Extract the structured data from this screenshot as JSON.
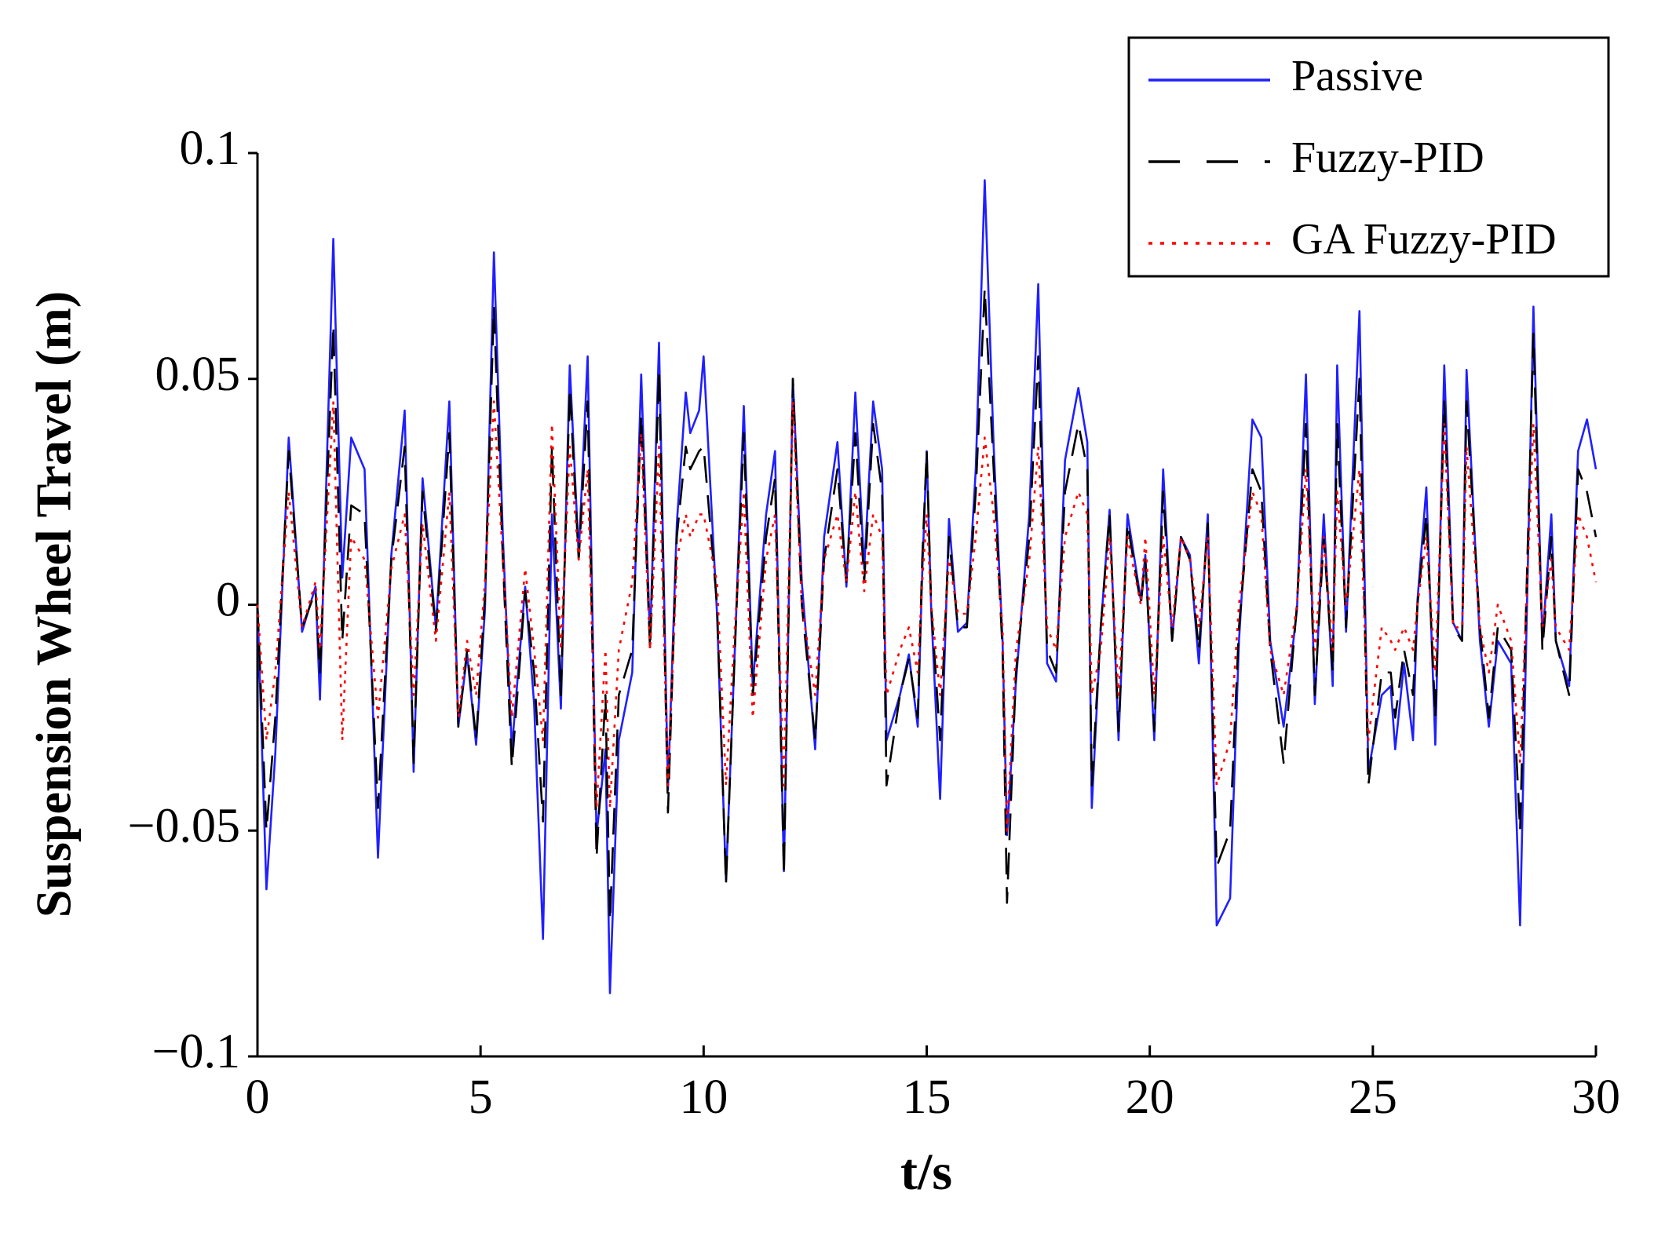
{
  "chart_data": {
    "type": "line",
    "x_label": "t/s",
    "y_label": "Suspension Wheel Travel (m)",
    "xlim": [
      0,
      30
    ],
    "xticks": [
      0,
      5,
      10,
      15,
      20,
      25,
      30
    ],
    "ylim": [
      -0.1,
      0.1
    ],
    "yticks": [
      {
        "value": -0.1,
        "label": "−0.1"
      },
      {
        "value": -0.05,
        "label": "−0.05"
      },
      0,
      0.05,
      0.1
    ],
    "legend": "upper right",
    "x": [
      0,
      0.2,
      0.4,
      0.7,
      1.0,
      1.3,
      1.4,
      1.7,
      1.9,
      2.1,
      2.4,
      2.7,
      3.0,
      3.3,
      3.5,
      3.7,
      4.0,
      4.3,
      4.5,
      4.7,
      4.9,
      5.1,
      5.3,
      5.5,
      5.7,
      6.0,
      6.2,
      6.4,
      6.6,
      6.8,
      7.0,
      7.2,
      7.4,
      7.6,
      7.8,
      7.9,
      8.1,
      8.4,
      8.6,
      8.8,
      9.0,
      9.2,
      9.4,
      9.6,
      9.7,
      9.9,
      10.0,
      10.3,
      10.5,
      10.7,
      10.9,
      11.1,
      11.4,
      11.6,
      11.8,
      12.0,
      12.2,
      12.5,
      12.7,
      13.0,
      13.2,
      13.4,
      13.6,
      13.8,
      14.0,
      14.1,
      14.4,
      14.6,
      14.8,
      14.9,
      15.0,
      15.1,
      15.3,
      15.5,
      15.7,
      15.9,
      16.1,
      16.3,
      16.5,
      16.7,
      16.8,
      17.0,
      17.3,
      17.5,
      17.7,
      17.9,
      18.1,
      18.4,
      18.6,
      18.7,
      18.9,
      19.1,
      19.3,
      19.5,
      19.8,
      19.9,
      20.1,
      20.3,
      20.5,
      20.7,
      20.9,
      21.1,
      21.3,
      21.5,
      21.8,
      22.0,
      22.3,
      22.5,
      22.7,
      23.0,
      23.3,
      23.5,
      23.7,
      23.9,
      24.1,
      24.2,
      24.4,
      24.7,
      24.9,
      25.2,
      25.4,
      25.5,
      25.7,
      25.9,
      26.0,
      26.2,
      26.4,
      26.6,
      26.8,
      27.0,
      27.1,
      27.4,
      27.6,
      27.8,
      28.1,
      28.3,
      28.6,
      28.8,
      29.0,
      29.1,
      29.4,
      29.6,
      29.8,
      30.0
    ],
    "series": [
      {
        "name": "Passive",
        "color": "#1f1fff",
        "dash": "solid",
        "values": [
          0,
          -0.063,
          -0.033,
          0.037,
          -0.006,
          0.004,
          -0.021,
          0.081,
          0.006,
          0.037,
          0.03,
          -0.056,
          0.011,
          0.043,
          -0.037,
          0.028,
          -0.005,
          0.045,
          -0.027,
          -0.011,
          -0.031,
          -0.001,
          0.078,
          0.015,
          -0.032,
          0.004,
          -0.022,
          -0.074,
          0.02,
          -0.023,
          0.053,
          0.011,
          0.055,
          -0.051,
          -0.032,
          -0.086,
          -0.03,
          -0.015,
          0.051,
          -0.008,
          0.058,
          -0.041,
          0.018,
          0.047,
          0.038,
          0.043,
          0.055,
          -0.002,
          -0.061,
          -0.01,
          0.044,
          -0.018,
          0.02,
          0.034,
          -0.059,
          0.05,
          0.005,
          -0.032,
          0.015,
          0.036,
          0.004,
          0.047,
          0.008,
          0.045,
          0.03,
          -0.03,
          -0.02,
          -0.011,
          -0.027,
          0.007,
          0.034,
          -0.001,
          -0.043,
          0.019,
          -0.006,
          -0.004,
          0.03,
          0.094,
          0.035,
          -0.008,
          -0.051,
          -0.017,
          0.02,
          0.071,
          -0.013,
          -0.017,
          0.032,
          0.048,
          0.036,
          -0.045,
          -0.005,
          0.021,
          -0.03,
          0.02,
          0.001,
          0.011,
          -0.03,
          0.03,
          -0.008,
          0.015,
          0.011,
          -0.013,
          0.02,
          -0.071,
          -0.065,
          -0.008,
          0.041,
          0.037,
          -0.008,
          -0.027,
          -0.001,
          0.051,
          -0.022,
          0.02,
          -0.018,
          0.053,
          -0.006,
          0.065,
          -0.037,
          -0.02,
          -0.018,
          -0.032,
          -0.013,
          -0.03,
          0.001,
          0.026,
          -0.031,
          0.053,
          -0.004,
          -0.008,
          0.052,
          -0.008,
          -0.027,
          -0.008,
          -0.013,
          -0.071,
          0.066,
          -0.008,
          0.02,
          -0.008,
          -0.018,
          0.034,
          0.041,
          0.03
        ]
      },
      {
        "name": "Fuzzy-PID",
        "color": "#000000",
        "dash": "dashed",
        "values": [
          0,
          -0.05,
          -0.025,
          0.034,
          -0.005,
          0.003,
          -0.015,
          0.062,
          -0.008,
          0.022,
          0.02,
          -0.045,
          0.01,
          0.035,
          -0.035,
          0.025,
          -0.006,
          0.038,
          -0.027,
          -0.01,
          -0.03,
          0.002,
          0.066,
          0.01,
          -0.036,
          0.003,
          -0.015,
          -0.048,
          0.035,
          -0.02,
          0.048,
          0.01,
          0.045,
          -0.056,
          -0.02,
          -0.07,
          -0.02,
          -0.01,
          0.042,
          -0.01,
          0.052,
          -0.046,
          0.015,
          0.035,
          0.03,
          0.034,
          0.035,
          0.0,
          -0.062,
          -0.01,
          0.038,
          -0.02,
          0.015,
          0.028,
          -0.06,
          0.05,
          0.0,
          -0.03,
          0.01,
          0.03,
          0.005,
          0.038,
          0.005,
          0.04,
          0.025,
          -0.04,
          -0.02,
          -0.012,
          -0.025,
          0.01,
          0.034,
          0.0,
          -0.03,
          0.015,
          -0.005,
          -0.005,
          0.025,
          0.07,
          0.03,
          -0.01,
          -0.066,
          -0.015,
          0.015,
          0.055,
          -0.01,
          -0.015,
          0.025,
          0.04,
          0.03,
          -0.04,
          -0.005,
          0.02,
          -0.028,
          0.018,
          0.0,
          0.01,
          -0.028,
          0.025,
          -0.008,
          0.015,
          0.01,
          -0.01,
          0.018,
          -0.058,
          -0.05,
          -0.005,
          0.03,
          0.025,
          -0.01,
          -0.035,
          0.0,
          0.04,
          -0.02,
          0.015,
          -0.015,
          0.04,
          -0.005,
          0.05,
          -0.04,
          -0.015,
          -0.015,
          -0.025,
          -0.01,
          -0.02,
          0.0,
          0.02,
          -0.025,
          0.045,
          -0.005,
          -0.008,
          0.045,
          -0.005,
          -0.025,
          -0.005,
          -0.01,
          -0.05,
          0.06,
          -0.01,
          0.015,
          -0.008,
          -0.02,
          0.03,
          0.025,
          0.015
        ]
      },
      {
        "name": "GA Fuzzy-PID",
        "color": "#ff0000",
        "dash": "dotted",
        "values": [
          0,
          -0.03,
          -0.015,
          0.025,
          -0.005,
          0.005,
          -0.01,
          0.045,
          -0.03,
          0.015,
          0.01,
          -0.025,
          0.008,
          0.02,
          -0.02,
          0.018,
          -0.008,
          0.025,
          -0.025,
          -0.008,
          -0.02,
          0.005,
          0.045,
          0.01,
          -0.025,
          0.008,
          -0.01,
          -0.03,
          0.04,
          -0.01,
          0.035,
          0.01,
          0.03,
          -0.045,
          -0.01,
          -0.045,
          -0.01,
          0.005,
          0.038,
          -0.01,
          0.035,
          -0.04,
          0.01,
          0.02,
          0.015,
          0.02,
          0.02,
          0.005,
          -0.04,
          -0.005,
          0.025,
          -0.025,
          0.01,
          0.02,
          -0.04,
          0.045,
          0.0,
          -0.02,
          0.01,
          0.02,
          0.005,
          0.025,
          0.003,
          0.02,
          0.015,
          -0.02,
          -0.01,
          -0.005,
          -0.015,
          0.005,
          0.02,
          0.0,
          -0.02,
          0.01,
          -0.002,
          -0.002,
          0.015,
          0.037,
          0.02,
          -0.005,
          -0.05,
          -0.01,
          0.01,
          0.035,
          -0.005,
          -0.01,
          0.015,
          0.025,
          0.02,
          -0.02,
          -0.01,
          0.015,
          -0.02,
          0.015,
          0.0,
          0.015,
          -0.02,
          0.015,
          -0.005,
          0.015,
          0.01,
          -0.005,
          0.015,
          -0.04,
          -0.03,
          0.0,
          0.025,
          0.02,
          -0.01,
          -0.02,
          0.0,
          0.03,
          -0.01,
          0.015,
          -0.01,
          0.025,
          0.0,
          0.03,
          -0.03,
          -0.005,
          -0.008,
          -0.01,
          -0.005,
          -0.01,
          0.0,
          0.015,
          -0.015,
          0.04,
          -0.005,
          -0.005,
          0.035,
          -0.005,
          -0.015,
          0.0,
          -0.008,
          -0.035,
          0.04,
          -0.005,
          0.01,
          -0.005,
          -0.01,
          0.02,
          0.015,
          0.005
        ]
      }
    ]
  }
}
